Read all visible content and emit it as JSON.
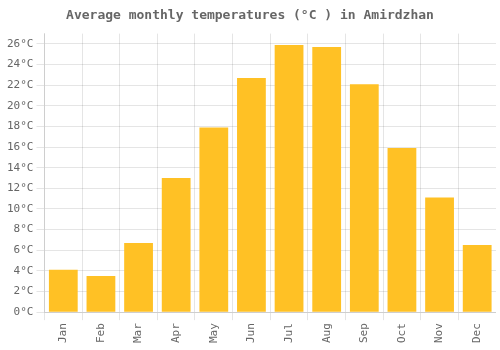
{
  "chart_data": {
    "type": "bar",
    "title": "Average monthly temperatures (°C ) in Amirdzhan",
    "categories": [
      "Jan",
      "Feb",
      "Mar",
      "Apr",
      "May",
      "Jun",
      "Jul",
      "Aug",
      "Sep",
      "Oct",
      "Nov",
      "Dec"
    ],
    "values": [
      4.1,
      3.5,
      6.7,
      13.0,
      17.9,
      22.7,
      25.9,
      25.7,
      22.1,
      15.9,
      11.1,
      6.5
    ],
    "color": "#FFC125",
    "ylim": [
      0,
      27
    ],
    "yticks": [
      {
        "value": 0,
        "label": "0°C"
      },
      {
        "value": 2,
        "label": "2°C"
      },
      {
        "value": 4,
        "label": "4°C"
      },
      {
        "value": 6,
        "label": "6°C"
      },
      {
        "value": 8,
        "label": "8°C"
      },
      {
        "value": 10,
        "label": "10°C"
      },
      {
        "value": 12,
        "label": "12°C"
      },
      {
        "value": 14,
        "label": "14°C"
      },
      {
        "value": 16,
        "label": "16°C"
      },
      {
        "value": 18,
        "label": "18°C"
      },
      {
        "value": 20,
        "label": "20°C"
      },
      {
        "value": 22,
        "label": "22°C"
      },
      {
        "value": 24,
        "label": "24°C"
      },
      {
        "value": 26,
        "label": "26°C"
      }
    ],
    "grid": true
  }
}
